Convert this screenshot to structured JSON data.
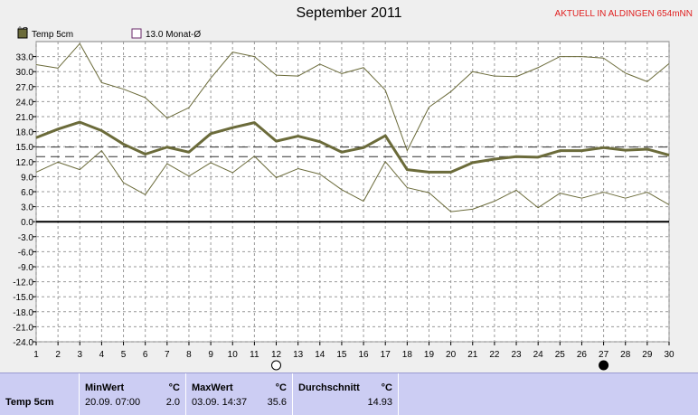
{
  "chart_data": {
    "type": "line",
    "title": "September 2011",
    "station_label": "AKTUELL IN ALDINGEN 654mNN",
    "y_unit": "°C",
    "ylim": [
      -24,
      36
    ],
    "yticks": [
      33.0,
      30.0,
      27.0,
      24.0,
      21.0,
      18.0,
      15.0,
      12.0,
      9.0,
      6.0,
      3.0,
      0.0,
      -3.0,
      -6.0,
      -9.0,
      -12.0,
      -15.0,
      -18.0,
      -21.0,
      -24.0
    ],
    "ytick_labels": [
      "33.0",
      "30.0",
      "27.0",
      "24.0",
      "21.0",
      "18.0",
      "15.0",
      "12.0",
      "9.0",
      "6.0",
      "3.0",
      "0.0",
      "-3.0",
      "-6.0",
      "-9.0",
      "-12.0",
      "-15.0",
      "-18.0",
      "-21.0",
      "-24.0"
    ],
    "x": [
      1,
      2,
      3,
      4,
      5,
      6,
      7,
      8,
      9,
      10,
      11,
      12,
      13,
      14,
      15,
      16,
      17,
      18,
      19,
      20,
      21,
      22,
      23,
      24,
      25,
      26,
      27,
      28,
      29,
      30
    ],
    "xtick_labels": [
      "1",
      "2",
      "3",
      "4",
      "5",
      "6",
      "7",
      "8",
      "9",
      "10",
      "11",
      "12",
      "13",
      "14",
      "15",
      "16",
      "17",
      "18",
      "19",
      "20",
      "21",
      "22",
      "23",
      "24",
      "25",
      "26",
      "27",
      "28",
      "29",
      "30"
    ],
    "grid": true,
    "legend_position": "top-left",
    "legend": [
      {
        "label": "Temp 5cm",
        "color": "#6b6b3a"
      },
      {
        "label": "13.0 Monat-Ø",
        "color": "#6a2a6a"
      }
    ],
    "series": [
      {
        "name": "Temp 5cm",
        "color": "#6b6b3a",
        "values": [
          16.8,
          18.5,
          19.9,
          18.2,
          15.5,
          13.5,
          14.9,
          13.9,
          17.6,
          18.8,
          19.8,
          16.1,
          17.1,
          16.0,
          13.9,
          14.8,
          17.2,
          10.4,
          9.9,
          9.9,
          11.8,
          12.5,
          13.0,
          12.9,
          14.2,
          14.2,
          14.8,
          14.3,
          14.5,
          13.3
        ]
      },
      {
        "name": "Max",
        "color": "#6b6b3a",
        "values": [
          31.4,
          30.7,
          35.6,
          27.8,
          26.5,
          24.8,
          20.7,
          22.8,
          28.7,
          33.9,
          33.0,
          29.3,
          29.1,
          31.5,
          29.6,
          30.8,
          26.3,
          14.2,
          22.9,
          26.0,
          30.0,
          29.1,
          29.0,
          30.8,
          33.0,
          33.0,
          32.7,
          29.7,
          28.0,
          31.6
        ]
      },
      {
        "name": "Min",
        "color": "#6b6b3a",
        "values": [
          9.9,
          11.9,
          10.4,
          14.2,
          7.8,
          5.4,
          11.6,
          9.1,
          11.8,
          9.8,
          13.1,
          8.8,
          10.6,
          9.5,
          6.4,
          4.1,
          12.0,
          6.8,
          5.8,
          2.0,
          2.5,
          4.1,
          6.3,
          2.8,
          5.7,
          4.7,
          5.9,
          4.7,
          5.9,
          3.4
        ]
      }
    ],
    "reference_lines": [
      {
        "label": "13.0 Monat-Ø",
        "value": 13.0
      },
      {
        "label": "",
        "value": 14.93
      }
    ],
    "moon_markers": [
      {
        "day": 12,
        "phase": "full-moon"
      },
      {
        "day": 27,
        "phase": "new-moon"
      }
    ]
  },
  "stats": {
    "row_label": "Temp 5cm",
    "min_header": "MinWert",
    "min_unit": "°C",
    "min_date": "20.09.  07:00",
    "min_value": "2.0",
    "max_header": "MaxWert",
    "max_unit": "°C",
    "max_date": "03.09.  14:37",
    "max_value": "35.6",
    "avg_header": "Durchschnitt",
    "avg_unit": "°C",
    "avg_value": "14.93"
  }
}
